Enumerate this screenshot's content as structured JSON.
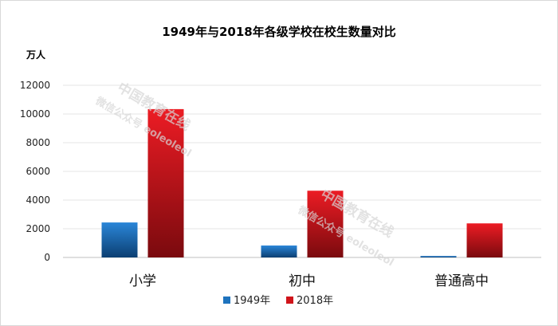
{
  "chart_data": {
    "type": "bar",
    "title": "1949年与2018年各级学校在校生数量对比",
    "ylabel": "万人",
    "xlabel": "",
    "categories": [
      "小学",
      "初中",
      "普通高中"
    ],
    "series": [
      {
        "name": "1949年",
        "values": [
          2439,
          832,
          104
        ],
        "color": "#1e73be"
      },
      {
        "name": "2018年",
        "values": [
          10339,
          4652,
          2375
        ],
        "color": "#d0141a"
      }
    ],
    "ylim": [
      0,
      12000
    ],
    "yticks": [
      0,
      2000,
      4000,
      6000,
      8000,
      10000,
      12000
    ],
    "grid": true,
    "legend": "bottom-center"
  },
  "watermark": {
    "line1": "中国教育在线",
    "line2": "微信公众号 eoleoleol"
  }
}
